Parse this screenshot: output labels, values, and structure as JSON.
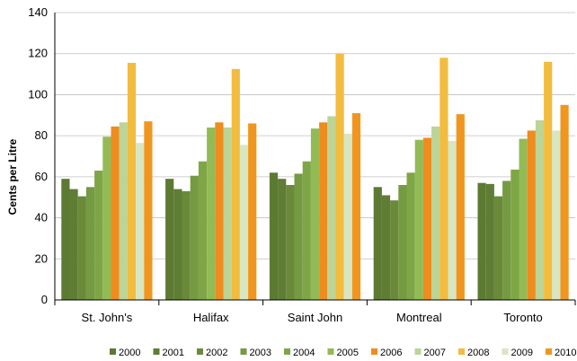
{
  "chart_data": {
    "type": "bar",
    "title": "",
    "xlabel": "",
    "ylabel": "Cents per Litre",
    "ylim": [
      0,
      140
    ],
    "yticks": [
      0,
      20,
      40,
      60,
      80,
      100,
      120,
      140
    ],
    "grid": "horizontal",
    "legend_position": "bottom",
    "categories": [
      "St. John's",
      "Halifax",
      "Saint John",
      "Montreal",
      "Toronto"
    ],
    "series": [
      {
        "name": "2000",
        "color": "#5c7a32",
        "values": [
          59,
          59,
          62,
          55,
          57
        ]
      },
      {
        "name": "2001",
        "color": "#5f7d35",
        "values": [
          54,
          54,
          59,
          51,
          56.5
        ]
      },
      {
        "name": "2002",
        "color": "#6a8a3a",
        "values": [
          50.5,
          53,
          56,
          48.5,
          50.5
        ]
      },
      {
        "name": "2003",
        "color": "#749a42",
        "values": [
          55,
          60.5,
          61.5,
          56,
          58
        ]
      },
      {
        "name": "2004",
        "color": "#7fa646",
        "values": [
          63,
          67.5,
          67.5,
          62,
          63.5
        ]
      },
      {
        "name": "2005",
        "color": "#93bb55",
        "values": [
          79.5,
          84,
          83.5,
          78,
          78.5
        ]
      },
      {
        "name": "2006",
        "color": "#ee8c1e",
        "values": [
          84.5,
          86.5,
          86.5,
          79,
          82.5
        ]
      },
      {
        "name": "2007",
        "color": "#bcd496",
        "values": [
          86.5,
          84,
          89.5,
          84.5,
          87.5
        ]
      },
      {
        "name": "2008",
        "color": "#f2bc3e",
        "values": [
          115.5,
          112.5,
          120,
          118,
          116
        ]
      },
      {
        "name": "2009",
        "color": "#d8e6c2",
        "values": [
          76.5,
          75.5,
          81,
          77.5,
          82.5
        ]
      },
      {
        "name": "2010",
        "color": "#f0961f",
        "values": [
          87,
          86,
          91,
          90.5,
          95
        ]
      }
    ]
  }
}
